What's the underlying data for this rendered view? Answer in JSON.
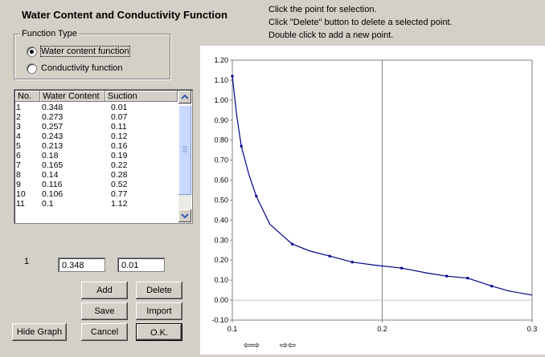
{
  "title": "Water Content and Conductivity Function",
  "instructions": [
    "Click the point for selection.",
    "Click \"Delete\" button to delete a selected point.",
    "Double click to add a new point."
  ],
  "function_type": {
    "legend": "Function Type",
    "options": [
      {
        "label": "Water content function",
        "selected": true
      },
      {
        "label": "Conductivity function",
        "selected": false
      }
    ]
  },
  "table": {
    "headers": [
      "No.",
      "Water Content",
      "Suction"
    ],
    "rows": [
      [
        "1",
        "0.348",
        "0.01"
      ],
      [
        "2",
        "0.273",
        "0.07"
      ],
      [
        "3",
        "0.257",
        "0.11"
      ],
      [
        "4",
        "0.243",
        "0.12"
      ],
      [
        "5",
        "0.213",
        "0.16"
      ],
      [
        "6",
        "0.18",
        "0.19"
      ],
      [
        "7",
        "0.165",
        "0.22"
      ],
      [
        "8",
        "0.14",
        "0.28"
      ],
      [
        "9",
        "0.116",
        "0.52"
      ],
      [
        "10",
        "0.106",
        "0.77"
      ],
      [
        "11",
        "0.1",
        "1.12"
      ]
    ]
  },
  "selected_point": {
    "index": "1",
    "water_content": "0.348",
    "suction": "0.01"
  },
  "buttons": {
    "add": "Add",
    "delete": "Delete",
    "save": "Save",
    "import": "Import",
    "hide_graph": "Hide Graph",
    "cancel": "Cancel",
    "ok": "O.K."
  },
  "nav": {
    "left": "⇦⇨",
    "right": "⇨⇦"
  },
  "chart_data": {
    "type": "line",
    "x_ticks": [
      "0.1",
      "0.2",
      "0.3"
    ],
    "y_ticks": [
      "-0.10",
      "0.00",
      "0.10",
      "0.20",
      "0.30",
      "0.40",
      "0.50",
      "0.60",
      "0.70",
      "0.80",
      "0.90",
      "1.00",
      "1.10",
      "1.20"
    ],
    "xlim": [
      0.1,
      0.3
    ],
    "ylim": [
      -0.1,
      1.2
    ],
    "line_color": "#00008b",
    "points": [
      [
        0.1,
        1.12
      ],
      [
        0.106,
        0.77
      ],
      [
        0.116,
        0.52
      ],
      [
        0.14,
        0.28
      ],
      [
        0.165,
        0.22
      ],
      [
        0.18,
        0.19
      ],
      [
        0.213,
        0.16
      ],
      [
        0.243,
        0.12
      ],
      [
        0.257,
        0.11
      ],
      [
        0.273,
        0.07
      ]
    ],
    "curve": [
      [
        0.1,
        1.12
      ],
      [
        0.103,
        0.92
      ],
      [
        0.106,
        0.77
      ],
      [
        0.111,
        0.63
      ],
      [
        0.116,
        0.52
      ],
      [
        0.125,
        0.38
      ],
      [
        0.14,
        0.28
      ],
      [
        0.152,
        0.245
      ],
      [
        0.165,
        0.22
      ],
      [
        0.18,
        0.19
      ],
      [
        0.195,
        0.175
      ],
      [
        0.213,
        0.16
      ],
      [
        0.23,
        0.135
      ],
      [
        0.243,
        0.12
      ],
      [
        0.257,
        0.11
      ],
      [
        0.265,
        0.09
      ],
      [
        0.273,
        0.07
      ],
      [
        0.285,
        0.045
      ],
      [
        0.3,
        0.025
      ]
    ]
  }
}
